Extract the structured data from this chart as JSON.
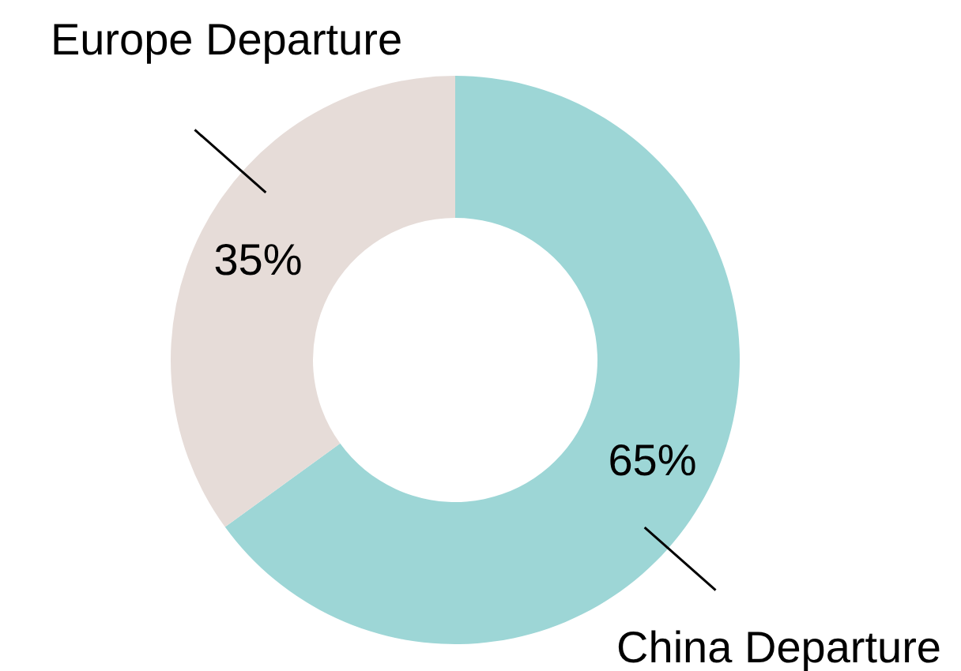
{
  "chart_data": {
    "type": "donut",
    "categories": [
      "China Departure",
      "Europe Departure"
    ],
    "values": [
      65,
      35
    ],
    "colors": [
      "#9dd6d6",
      "#e6dcd8"
    ],
    "value_labels": [
      "65%",
      "35%"
    ]
  }
}
